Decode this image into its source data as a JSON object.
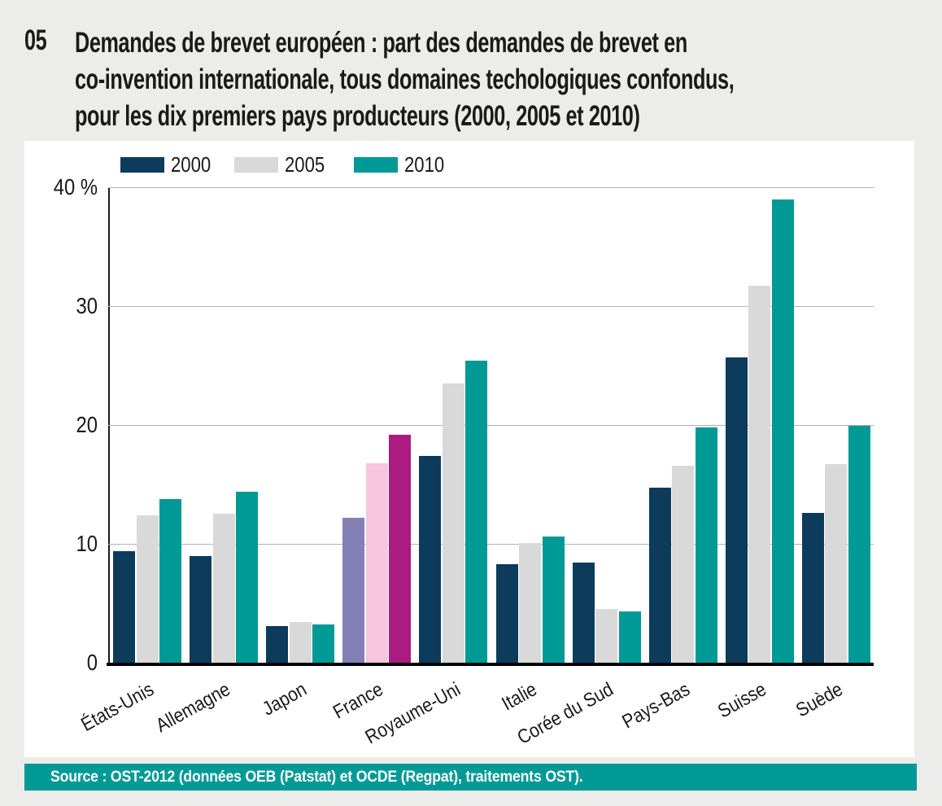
{
  "page": {
    "background": "#ececea",
    "panel_background": "#ffffff"
  },
  "header": {
    "number": "05",
    "title_lines": [
      "Demandes de brevet européen : part des demandes de brevet en",
      "co-invention internationale, tous domaines techologiques confondus,",
      "pour les dix premiers pays producteurs (2000, 2005 et 2010)"
    ]
  },
  "chart_data": {
    "type": "bar",
    "title": "Demandes de brevet européen : part des demandes de brevet en co-invention internationale, tous domaines techologiques confondus, pour les dix premiers pays producteurs (2000, 2005 et 2010)",
    "categories": [
      "États-Unis",
      "Allemagne",
      "Japon",
      "France",
      "Royaume-Uni",
      "Italie",
      "Corée du Sud",
      "Pays-Bas",
      "Suisse",
      "Suède"
    ],
    "series": [
      {
        "name": "2000",
        "color": "#0d3b5c",
        "values": [
          9.4,
          9.0,
          3.1,
          12.2,
          17.4,
          8.3,
          8.4,
          14.7,
          25.7,
          12.6
        ]
      },
      {
        "name": "2005",
        "color": "#d9d9da",
        "values": [
          12.4,
          12.5,
          3.4,
          16.8,
          23.5,
          10.1,
          4.5,
          16.6,
          31.7,
          16.7
        ]
      },
      {
        "name": "2010",
        "color": "#009a96",
        "values": [
          13.8,
          14.4,
          3.2,
          19.2,
          25.4,
          10.6,
          4.3,
          19.8,
          39.0,
          19.9
        ]
      }
    ],
    "highlight": {
      "category": "France",
      "colors": [
        "#8280b5",
        "#f5c6dd",
        "#ab1b80"
      ]
    },
    "ylim": [
      0,
      40
    ],
    "y_ticks": [
      {
        "value": 0,
        "label": "0"
      },
      {
        "value": 10,
        "label": "10"
      },
      {
        "value": 20,
        "label": "20"
      },
      {
        "value": 30,
        "label": "30"
      },
      {
        "value": 40,
        "label": "40 %"
      }
    ],
    "grid": "horizontal",
    "gridline_color": "#b3b3b3",
    "legend_position": "top-left",
    "xlabel": "",
    "ylabel": ""
  },
  "footer": {
    "source": "Source : OST-2012 (données OEB (Patstat) et OCDE (Regpat), traitements OST).",
    "bar_color": "#009a96"
  }
}
